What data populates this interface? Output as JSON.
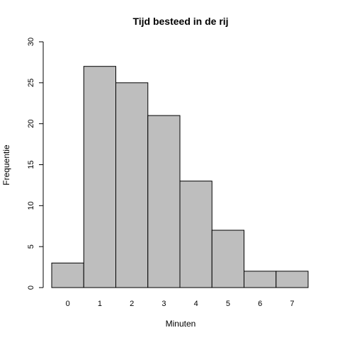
{
  "chart_data": {
    "type": "bar",
    "title": "Tijd besteed in de rij",
    "xlabel": "Minuten",
    "ylabel": "Frequentie",
    "categories": [
      "0",
      "1",
      "2",
      "3",
      "4",
      "5",
      "6",
      "7"
    ],
    "values": [
      3,
      27,
      25,
      21,
      13,
      7,
      2,
      2
    ],
    "ylim": [
      0,
      30
    ],
    "yticks": [
      0,
      5,
      10,
      15,
      20,
      25,
      30
    ],
    "grid": false,
    "bar_color": "#bebebe"
  }
}
